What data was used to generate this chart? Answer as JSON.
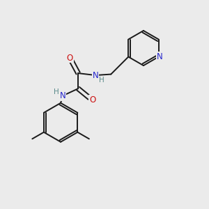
{
  "bg_color": "#ebebeb",
  "bond_color": "#1a1a1a",
  "bond_width": 1.4,
  "N_color": "#2525cc",
  "O_color": "#cc1111",
  "C_color": "#1a1a1a",
  "H_color": "#5a8a8a",
  "figsize": [
    3.0,
    3.0
  ],
  "dpi": 100,
  "xlim": [
    0,
    10
  ],
  "ylim": [
    0,
    10
  ]
}
